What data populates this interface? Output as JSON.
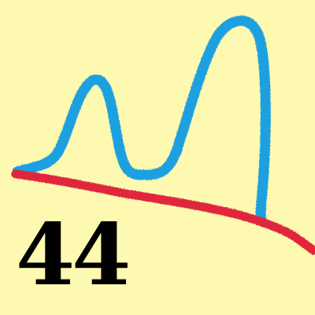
{
  "label": "44",
  "colors": {
    "background": "#fdf9b0",
    "curve": "#1ea0e0",
    "baseline": "#e0283c",
    "label": "#000000"
  }
}
